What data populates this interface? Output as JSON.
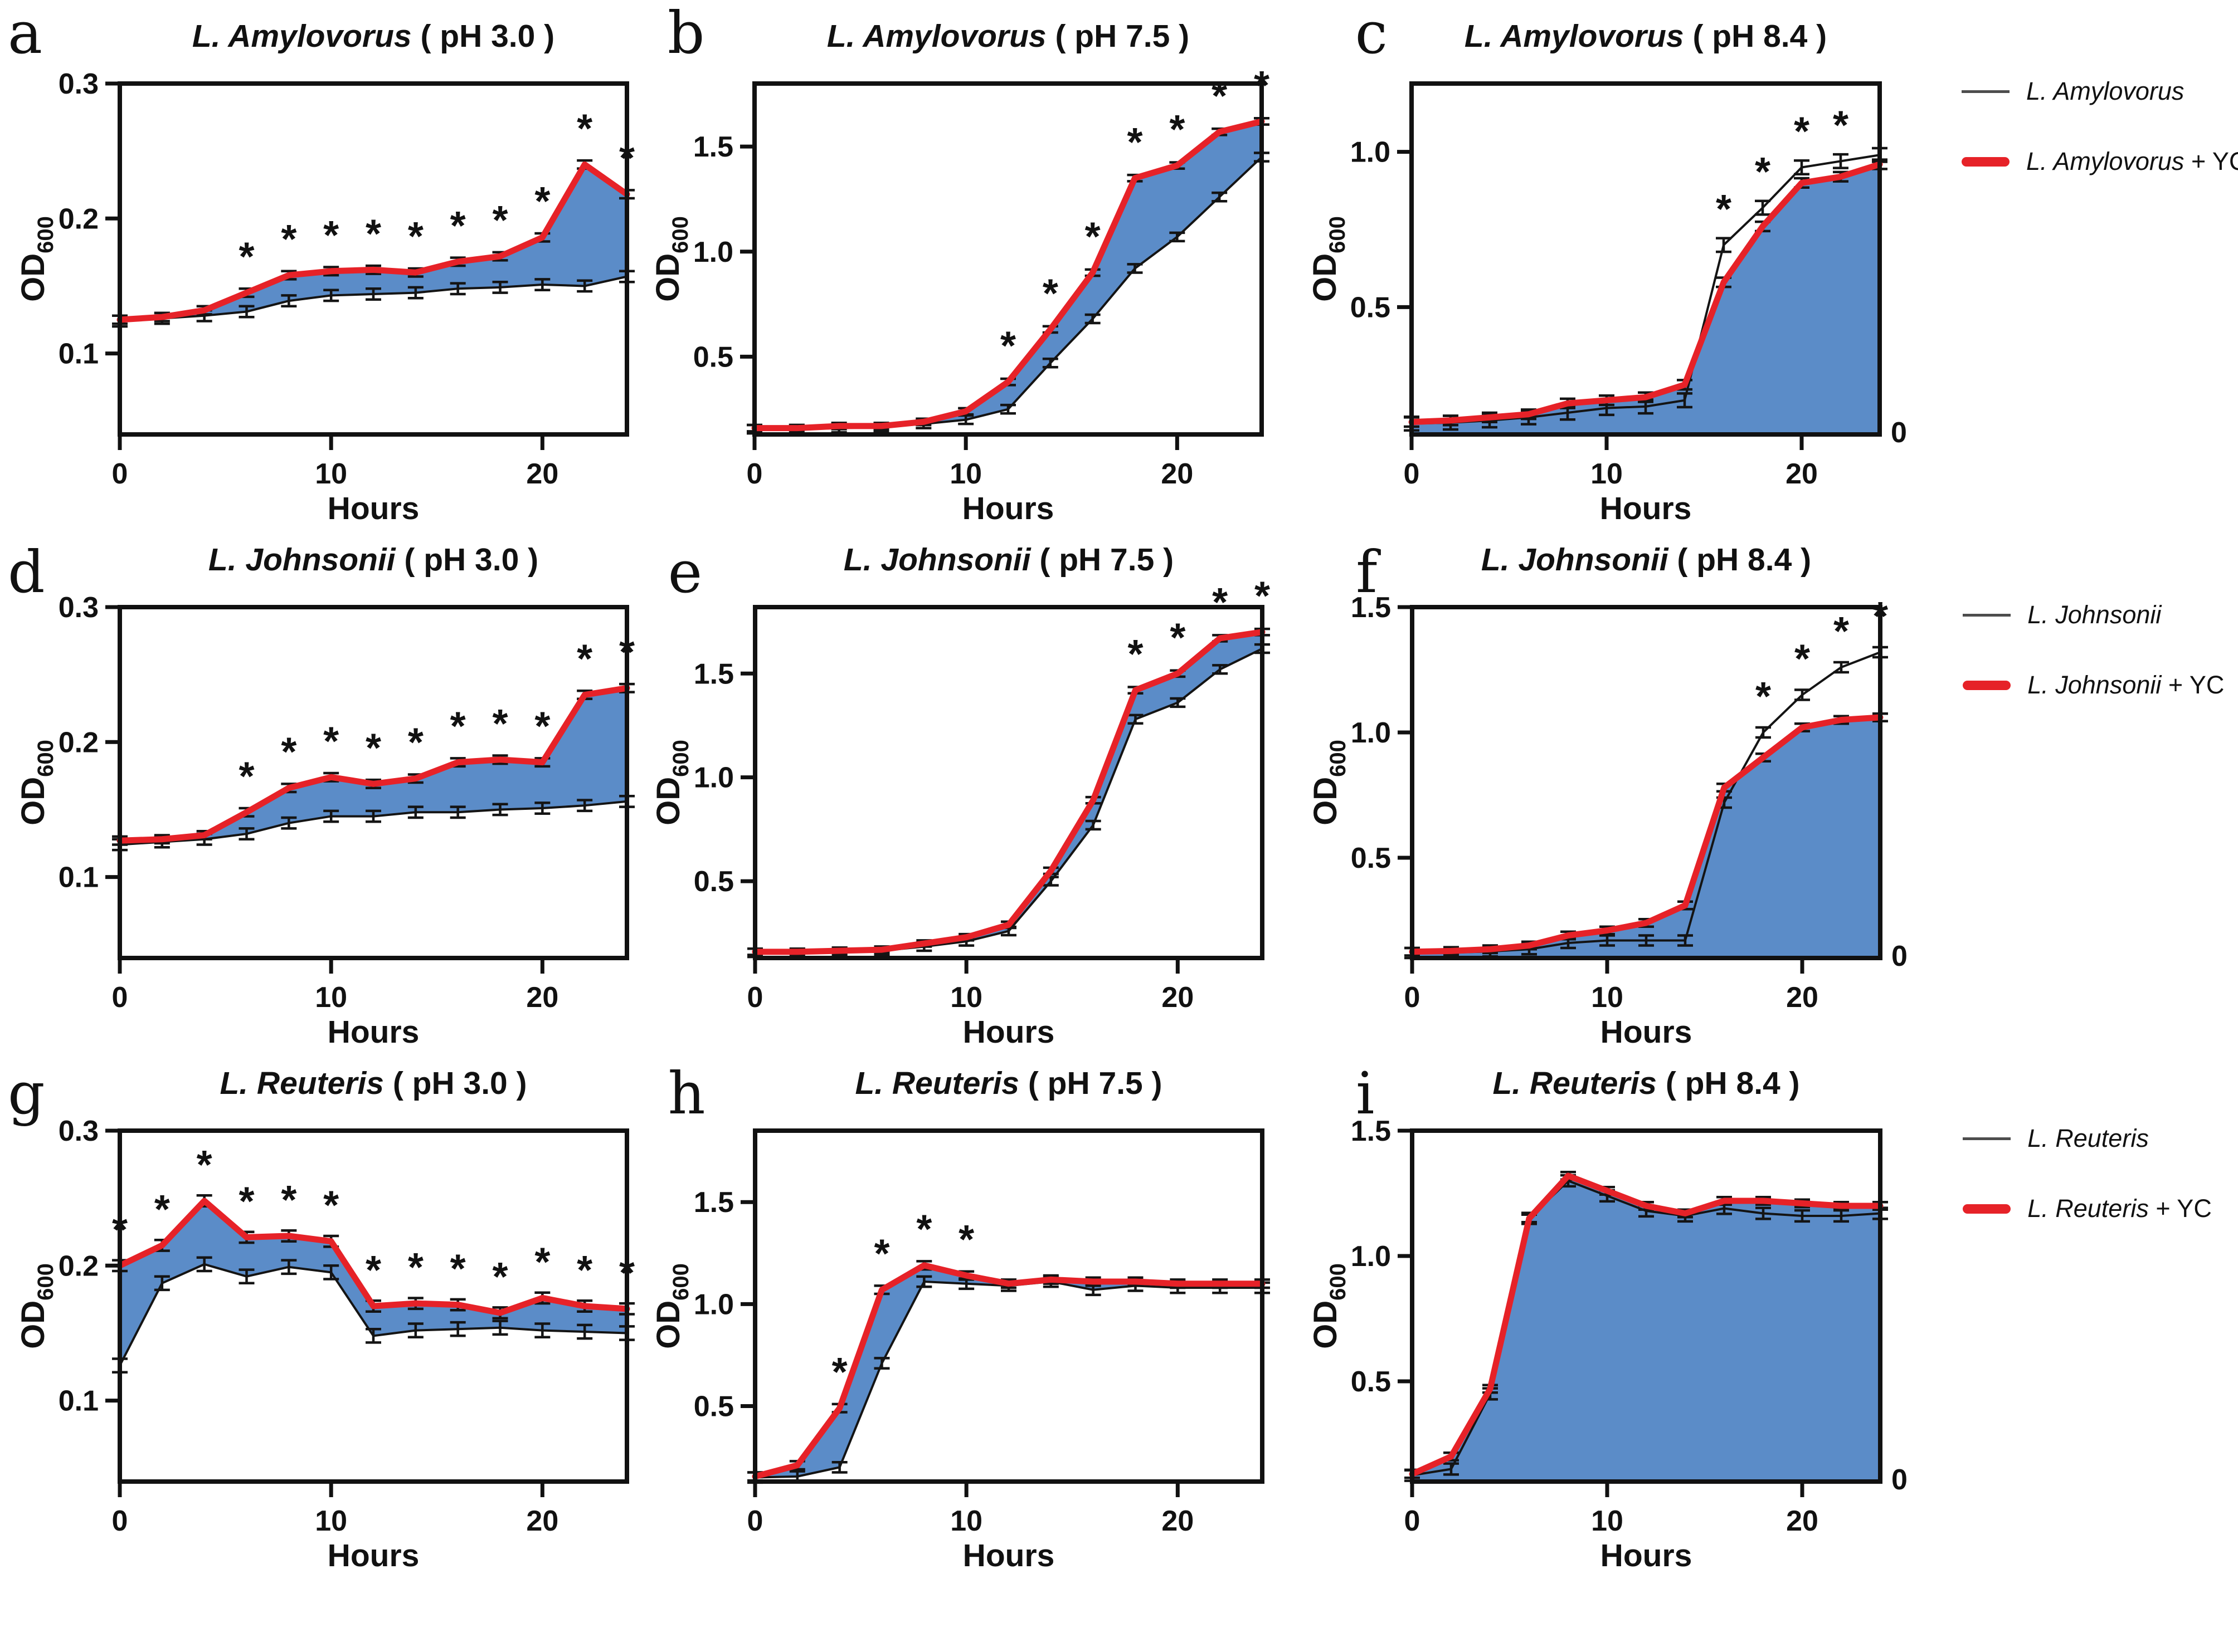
{
  "colors": {
    "red": "#e62228",
    "blue": "#5b8cc8",
    "line": "#141414",
    "frame": "#111111"
  },
  "legends": [
    {
      "entries": [
        {
          "label": "L. Amylovorus",
          "suffix": "",
          "swatch": "line"
        },
        {
          "label": "L. Amylovorus",
          "suffix": " + YC",
          "swatch": "thick"
        }
      ]
    },
    {
      "entries": [
        {
          "label": "L. Johnsonii",
          "suffix": "",
          "swatch": "line"
        },
        {
          "label": "L. Johnsonii",
          "suffix": " + YC",
          "swatch": "thick"
        }
      ]
    },
    {
      "entries": [
        {
          "label": "L. Reuteris",
          "suffix": "",
          "swatch": "line"
        },
        {
          "label": "L. Reuteris",
          "suffix": " + YC",
          "swatch": "thick"
        }
      ]
    }
  ],
  "chart_data": [
    {
      "type": "line",
      "letter": "a",
      "title_species": "L. Amylovorus",
      "title_ph": "( pH 3.0 )",
      "xlabel": "Hours",
      "ylabel": "OD",
      "ylabel_sub": "600",
      "x": [
        0,
        2,
        4,
        6,
        8,
        10,
        12,
        14,
        16,
        18,
        20,
        22,
        24
      ],
      "xlim": [
        0,
        24
      ],
      "xticks": [
        0,
        10,
        20
      ],
      "ylim": [
        0.04,
        0.3
      ],
      "yticks": [
        {
          "v": 0.1,
          "label": "0.1"
        },
        {
          "v": 0.2,
          "label": "0.2"
        },
        {
          "v": 0.3,
          "label": "0.3"
        }
      ],
      "fill": "between",
      "zero_label": false,
      "series": [
        {
          "name": "L. Amylovorus",
          "role": "plain",
          "err": 0.004,
          "values": [
            0.124,
            0.126,
            0.128,
            0.131,
            0.139,
            0.143,
            0.144,
            0.145,
            0.148,
            0.149,
            0.151,
            0.15,
            0.157
          ]
        },
        {
          "name": "L. Amylovorus + YC",
          "role": "yc",
          "err": 0.003,
          "values": [
            0.125,
            0.127,
            0.132,
            0.145,
            0.158,
            0.161,
            0.162,
            0.16,
            0.168,
            0.172,
            0.186,
            0.24,
            0.218
          ]
        }
      ],
      "stars": [
        6,
        8,
        10,
        12,
        14,
        16,
        18,
        20,
        22,
        24
      ]
    },
    {
      "type": "line",
      "letter": "b",
      "title_species": "L. Amylovorus",
      "title_ph": "( pH 7.5 )",
      "xlabel": "Hours",
      "ylabel": "OD",
      "ylabel_sub": "600",
      "x": [
        0,
        2,
        4,
        6,
        8,
        10,
        12,
        14,
        16,
        18,
        20,
        22,
        24
      ],
      "xlim": [
        0,
        24
      ],
      "xticks": [
        0,
        10,
        20
      ],
      "ylim": [
        0.13,
        1.8
      ],
      "yticks": [
        {
          "v": 0.5,
          "label": "0.5"
        },
        {
          "v": 1.0,
          "label": "1.0"
        },
        {
          "v": 1.5,
          "label": "1.5"
        }
      ],
      "fill": "between",
      "zero_label": false,
      "series": [
        {
          "name": "L. Amylovorus",
          "role": "plain",
          "err": 0.02,
          "values": [
            0.155,
            0.155,
            0.16,
            0.165,
            0.18,
            0.2,
            0.25,
            0.47,
            0.68,
            0.92,
            1.07,
            1.26,
            1.45
          ]
        },
        {
          "name": "L. Amylovorus + YC",
          "role": "yc",
          "err": 0.015,
          "values": [
            0.16,
            0.16,
            0.17,
            0.17,
            0.19,
            0.24,
            0.38,
            0.63,
            0.9,
            1.35,
            1.41,
            1.57,
            1.62
          ]
        }
      ],
      "stars": [
        12,
        14,
        16,
        18,
        20,
        22,
        24
      ]
    },
    {
      "type": "line",
      "letter": "c",
      "title_species": "L. Amylovorus",
      "title_ph": "( pH 8.4 )",
      "xlabel": "Hours",
      "ylabel": "OD",
      "ylabel_sub": "600",
      "x": [
        0,
        2,
        4,
        6,
        8,
        10,
        12,
        14,
        16,
        18,
        20,
        22,
        24
      ],
      "xlim": [
        0,
        24
      ],
      "xticks": [
        0,
        10,
        20
      ],
      "ylim": [
        0.09,
        1.22
      ],
      "yticks": [
        {
          "v": 0.5,
          "label": "0.5"
        },
        {
          "v": 1.0,
          "label": "1.0"
        }
      ],
      "fill": "under",
      "zero_label": true,
      "zero_text": "0",
      "series": [
        {
          "name": "L. Amylovorus",
          "role": "plain",
          "err": 0.022,
          "values": [
            0.125,
            0.128,
            0.135,
            0.145,
            0.16,
            0.175,
            0.18,
            0.2,
            0.7,
            0.82,
            0.95,
            0.97,
            0.99
          ]
        },
        {
          "name": "L. Amylovorus + YC",
          "role": "yc",
          "err": 0.015,
          "values": [
            0.13,
            0.135,
            0.145,
            0.155,
            0.19,
            0.2,
            0.21,
            0.25,
            0.58,
            0.76,
            0.9,
            0.92,
            0.96
          ]
        }
      ],
      "stars": [
        16,
        18,
        20,
        22
      ]
    },
    {
      "type": "line",
      "letter": "d",
      "title_species": "L. Johnsonii",
      "title_ph": "( pH 3.0 )",
      "xlabel": "Hours",
      "ylabel": "OD",
      "ylabel_sub": "600",
      "x": [
        0,
        2,
        4,
        6,
        8,
        10,
        12,
        14,
        16,
        18,
        20,
        22,
        24
      ],
      "xlim": [
        0,
        24
      ],
      "xticks": [
        0,
        10,
        20
      ],
      "ylim": [
        0.04,
        0.3
      ],
      "yticks": [
        {
          "v": 0.1,
          "label": "0.1"
        },
        {
          "v": 0.2,
          "label": "0.2"
        },
        {
          "v": 0.3,
          "label": "0.3"
        }
      ],
      "fill": "between",
      "zero_label": false,
      "series": [
        {
          "name": "L. Johnsonii",
          "role": "plain",
          "err": 0.004,
          "values": [
            0.124,
            0.126,
            0.128,
            0.132,
            0.14,
            0.145,
            0.145,
            0.148,
            0.148,
            0.15,
            0.151,
            0.153,
            0.156
          ]
        },
        {
          "name": "L. Johnsonii + YC",
          "role": "yc",
          "err": 0.003,
          "values": [
            0.127,
            0.128,
            0.131,
            0.148,
            0.166,
            0.174,
            0.169,
            0.173,
            0.185,
            0.187,
            0.185,
            0.235,
            0.24
          ]
        }
      ],
      "stars": [
        6,
        8,
        10,
        12,
        14,
        16,
        18,
        20,
        22,
        24
      ]
    },
    {
      "type": "line",
      "letter": "e",
      "title_species": "L. Johnsonii",
      "title_ph": "( pH 7.5 )",
      "xlabel": "Hours",
      "ylabel": "OD",
      "ylabel_sub": "600",
      "x": [
        0,
        2,
        4,
        6,
        8,
        10,
        12,
        14,
        16,
        18,
        20,
        22,
        24
      ],
      "xlim": [
        0,
        24
      ],
      "xticks": [
        0,
        10,
        20
      ],
      "ylim": [
        0.13,
        1.82
      ],
      "yticks": [
        {
          "v": 0.5,
          "label": "0.5"
        },
        {
          "v": 1.0,
          "label": "1.0"
        },
        {
          "v": 1.5,
          "label": "1.5"
        }
      ],
      "fill": "between",
      "zero_label": false,
      "series": [
        {
          "name": "L. Johnsonii",
          "role": "plain",
          "err": 0.02,
          "values": [
            0.155,
            0.155,
            0.16,
            0.165,
            0.185,
            0.21,
            0.26,
            0.5,
            0.77,
            1.28,
            1.36,
            1.52,
            1.62
          ]
        },
        {
          "name": "L. Johnsonii + YC",
          "role": "yc",
          "err": 0.015,
          "values": [
            0.16,
            0.16,
            0.165,
            0.17,
            0.2,
            0.23,
            0.29,
            0.55,
            0.89,
            1.42,
            1.5,
            1.67,
            1.7
          ]
        }
      ],
      "stars": [
        18,
        20,
        22,
        24
      ]
    },
    {
      "type": "line",
      "letter": "f",
      "title_species": "L. Johnsonii",
      "title_ph": "( pH 8.4 )",
      "xlabel": "Hours",
      "ylabel": "OD",
      "ylabel_sub": "600",
      "x": [
        0,
        2,
        4,
        6,
        8,
        10,
        12,
        14,
        16,
        18,
        20,
        22,
        24
      ],
      "xlim": [
        0,
        24
      ],
      "xticks": [
        0,
        10,
        20
      ],
      "ylim": [
        0.1,
        1.5
      ],
      "yticks": [
        {
          "v": 0.5,
          "label": "0.5"
        },
        {
          "v": 1.0,
          "label": "1.0"
        },
        {
          "v": 1.5,
          "label": "1.5"
        }
      ],
      "fill": "under",
      "zero_label": true,
      "zero_text": "0",
      "series": [
        {
          "name": "L. Johnsonii",
          "role": "plain",
          "err": 0.02,
          "values": [
            0.12,
            0.122,
            0.126,
            0.135,
            0.16,
            0.17,
            0.17,
            0.17,
            0.72,
            1.0,
            1.15,
            1.26,
            1.32
          ]
        },
        {
          "name": "L. Johnsonii + YC",
          "role": "yc",
          "err": 0.015,
          "values": [
            0.125,
            0.128,
            0.135,
            0.15,
            0.19,
            0.21,
            0.24,
            0.31,
            0.78,
            0.9,
            1.02,
            1.05,
            1.06
          ]
        }
      ],
      "stars": [
        18,
        20,
        22,
        24
      ]
    },
    {
      "type": "line",
      "letter": "g",
      "title_species": "L. Reuteris",
      "title_ph": "( pH 3.0 )",
      "xlabel": "Hours",
      "ylabel": "OD",
      "ylabel_sub": "600",
      "x": [
        0,
        2,
        4,
        6,
        8,
        10,
        12,
        14,
        16,
        18,
        20,
        22,
        24
      ],
      "xlim": [
        0,
        24
      ],
      "xticks": [
        0,
        10,
        20
      ],
      "ylim": [
        0.04,
        0.3
      ],
      "yticks": [
        {
          "v": 0.1,
          "label": "0.1"
        },
        {
          "v": 0.2,
          "label": "0.2"
        },
        {
          "v": 0.3,
          "label": "0.3"
        }
      ],
      "fill": "between",
      "zero_label": false,
      "series": [
        {
          "name": "L. Reuteris",
          "role": "plain",
          "err": 0.005,
          "values": [
            0.126,
            0.187,
            0.201,
            0.192,
            0.199,
            0.195,
            0.148,
            0.152,
            0.153,
            0.154,
            0.152,
            0.151,
            0.15
          ]
        },
        {
          "name": "L. Reuteris + YC",
          "role": "yc",
          "err": 0.004,
          "values": [
            0.2,
            0.215,
            0.248,
            0.221,
            0.222,
            0.218,
            0.17,
            0.172,
            0.171,
            0.165,
            0.176,
            0.17,
            0.168
          ]
        }
      ],
      "stars": [
        0,
        2,
        4,
        6,
        8,
        10,
        12,
        14,
        16,
        18,
        20,
        22,
        24
      ]
    },
    {
      "type": "line",
      "letter": "h",
      "title_species": "L. Reuteris",
      "title_ph": "( pH 7.5 )",
      "xlabel": "Hours",
      "ylabel": "OD",
      "ylabel_sub": "600",
      "x": [
        0,
        2,
        4,
        6,
        8,
        10,
        12,
        14,
        16,
        18,
        20,
        22,
        24
      ],
      "xlim": [
        0,
        24
      ],
      "xticks": [
        0,
        10,
        20
      ],
      "ylim": [
        0.13,
        1.85
      ],
      "yticks": [
        {
          "v": 0.5,
          "label": "0.5"
        },
        {
          "v": 1.0,
          "label": "1.0"
        },
        {
          "v": 1.5,
          "label": "1.5"
        }
      ],
      "fill": "between",
      "zero_label": false,
      "series": [
        {
          "name": "L. Reuteris",
          "role": "plain",
          "err": 0.025,
          "values": [
            0.15,
            0.155,
            0.2,
            0.71,
            1.11,
            1.1,
            1.09,
            1.11,
            1.07,
            1.09,
            1.08,
            1.08,
            1.08
          ]
        },
        {
          "name": "L. Reuteris + YC",
          "role": "yc",
          "err": 0.02,
          "values": [
            0.155,
            0.21,
            0.49,
            1.07,
            1.19,
            1.14,
            1.1,
            1.12,
            1.11,
            1.11,
            1.1,
            1.1,
            1.1
          ]
        }
      ],
      "stars": [
        4,
        6,
        8,
        10
      ]
    },
    {
      "type": "line",
      "letter": "i",
      "title_species": "L. Reuteris",
      "title_ph": "( pH 8.4 )",
      "xlabel": "Hours",
      "ylabel": "OD",
      "ylabel_sub": "600",
      "x": [
        0,
        2,
        4,
        6,
        8,
        10,
        12,
        14,
        16,
        18,
        20,
        22,
        24
      ],
      "xlim": [
        0,
        24
      ],
      "xticks": [
        0,
        10,
        20
      ],
      "ylim": [
        0.1,
        1.5
      ],
      "yticks": [
        {
          "v": 0.5,
          "label": "0.5"
        },
        {
          "v": 1.0,
          "label": "1.0"
        },
        {
          "v": 1.5,
          "label": "1.5"
        }
      ],
      "fill": "under",
      "zero_label": true,
      "zero_text": "0",
      "series": [
        {
          "name": "L. Reuteris",
          "role": "plain",
          "err": 0.022,
          "values": [
            0.125,
            0.15,
            0.45,
            1.15,
            1.3,
            1.24,
            1.18,
            1.16,
            1.19,
            1.17,
            1.16,
            1.16,
            1.17
          ]
        },
        {
          "name": "L. Reuteris + YC",
          "role": "yc",
          "err": 0.015,
          "values": [
            0.13,
            0.2,
            0.47,
            1.15,
            1.32,
            1.26,
            1.2,
            1.17,
            1.22,
            1.22,
            1.21,
            1.2,
            1.2
          ]
        }
      ],
      "stars": []
    }
  ]
}
